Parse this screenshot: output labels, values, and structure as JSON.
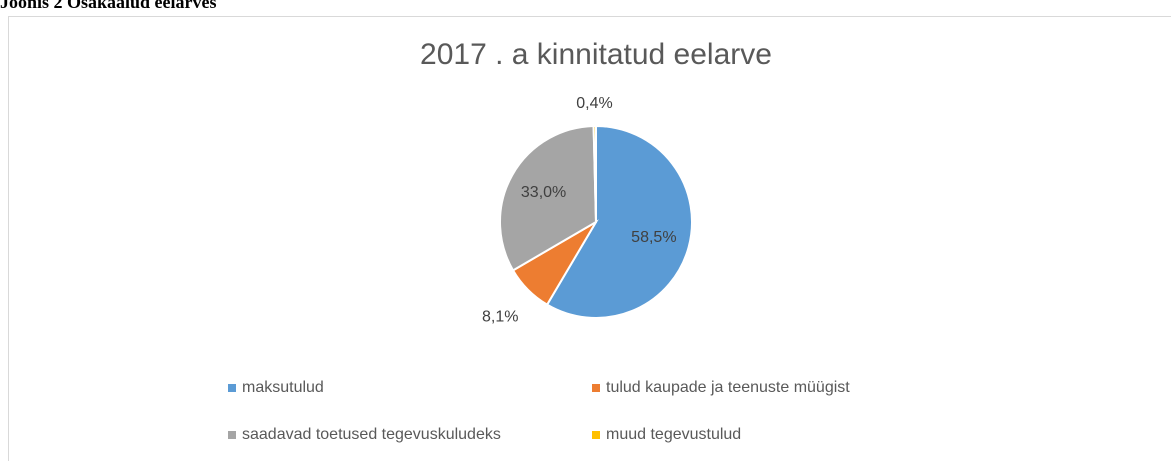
{
  "caption": "Joonis 2 Osakaalud eelarves",
  "chart_data": {
    "type": "pie",
    "title": "2017 . a kinnitatud eelarve",
    "categories": [
      "maksutulud",
      "tulud kaupade ja teenuste müügist",
      "saadavad toetused tegevuskuludeks",
      "muud tegevustulud"
    ],
    "values": [
      58.5,
      8.1,
      33.0,
      0.4
    ],
    "value_labels": [
      "58,5%",
      "8,1%",
      "33,0%",
      "0,4%"
    ],
    "colors": [
      "#5b9bd5",
      "#ed7d31",
      "#a5a5a5",
      "#ffc000"
    ],
    "legend": "bottom"
  }
}
